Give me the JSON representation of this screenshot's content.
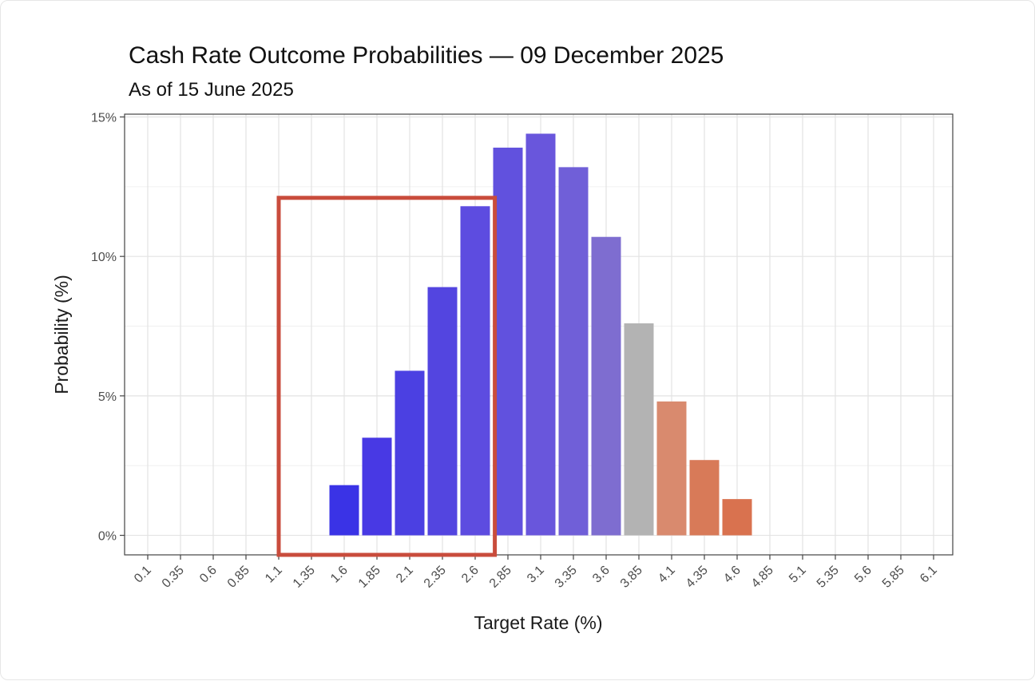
{
  "chart_data": {
    "type": "bar",
    "title": "Cash Rate Outcome Probabilities — 09 December 2025",
    "subtitle": "As of 15 June 2025",
    "xlabel": "Target Rate (%)",
    "ylabel": "Probability (%)",
    "categories": [
      "0.1",
      "0.35",
      "0.6",
      "0.85",
      "1.1",
      "1.35",
      "1.6",
      "1.85",
      "2.1",
      "2.35",
      "2.6",
      "2.85",
      "3.1",
      "3.35",
      "3.6",
      "3.85",
      "4.1",
      "4.35",
      "4.6",
      "4.85",
      "5.1",
      "5.35",
      "5.6",
      "5.85",
      "6.1"
    ],
    "values": [
      0,
      0,
      0,
      0,
      0,
      0,
      1.8,
      3.5,
      5.9,
      8.9,
      11.8,
      13.9,
      14.4,
      13.2,
      10.7,
      7.6,
      4.8,
      2.7,
      1.3,
      0,
      0,
      0,
      0,
      0,
      0
    ],
    "bar_colors": [
      "#3a33e6",
      "#3a33e6",
      "#3a33e6",
      "#3a33e6",
      "#3a33e6",
      "#3a33e6",
      "#3a33e6",
      "#4839e4",
      "#4b40e2",
      "#5345e0",
      "#5d4ce0",
      "#6151de",
      "#6956dc",
      "#705fd8",
      "#7e6dd0",
      "#b3b3b3",
      "#d98a6e",
      "#d87a58",
      "#d9724f",
      "#d9724f",
      "#d9724f",
      "#d9724f",
      "#d9724f",
      "#d9724f",
      "#d9724f"
    ],
    "yticks": [
      0,
      5,
      10,
      15
    ],
    "ytick_labels": [
      "0%",
      "5%",
      "10%",
      "15%"
    ],
    "ylim": [
      -0.7,
      15.1
    ],
    "grid": true,
    "highlight_box": {
      "from_category": "1.1",
      "to_category": "2.75",
      "y_from": -0.7,
      "y_to": 12.1,
      "color": "#c94c3c"
    }
  }
}
